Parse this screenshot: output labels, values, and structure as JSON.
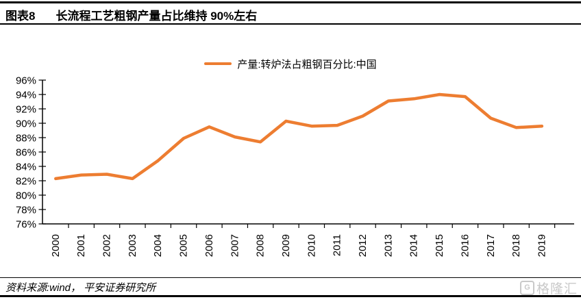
{
  "header": {
    "tag": "图表8",
    "title": "长流程工艺粗钢产量占比维持 90%左右"
  },
  "footer": {
    "source": "资料来源:wind， 平安证券研究所"
  },
  "watermark": {
    "icon": "G",
    "text": "格隆汇"
  },
  "colors": {
    "line": "#ED7D31",
    "axis": "#000000",
    "watermark": "#C9C9C9"
  },
  "chart_data": {
    "type": "line",
    "title": "长流程工艺粗钢产量占比维持 90%左右",
    "x": [
      "2000",
      "2001",
      "2002",
      "2003",
      "2004",
      "2005",
      "2006",
      "2007",
      "2008",
      "2009",
      "2010",
      "2011",
      "2012",
      "2013",
      "2014",
      "2015",
      "2016",
      "2017",
      "2018",
      "2019"
    ],
    "series": [
      {
        "name": "产量:转炉法占粗钢百分比:中国",
        "values": [
          82.3,
          82.8,
          82.9,
          82.3,
          84.8,
          87.9,
          89.5,
          88.1,
          87.4,
          90.3,
          89.6,
          89.7,
          91.0,
          93.1,
          93.4,
          94.0,
          93.7,
          90.7,
          89.4,
          89.6
        ]
      }
    ],
    "xlabel": "",
    "ylabel": "",
    "ylim": [
      76,
      96
    ],
    "ytick_step": 2,
    "ytick_suffix": "%",
    "grid": false,
    "legend_position": "top-center",
    "x_label_rotation": -90
  }
}
